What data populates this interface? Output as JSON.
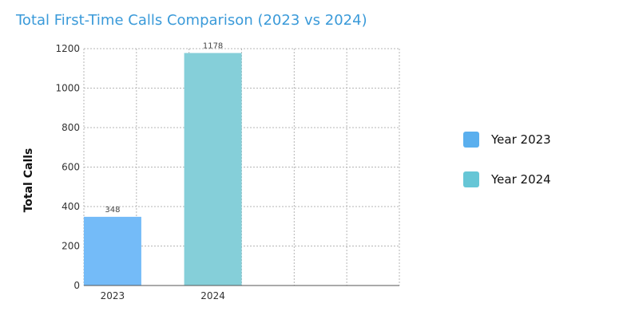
{
  "chart_data": {
    "type": "bar",
    "title": "Total First-Time Calls Comparison (2023 vs 2024)",
    "xlabel": "",
    "ylabel": "Total Calls",
    "categories": [
      "2023",
      "2024"
    ],
    "values": [
      348,
      1178
    ],
    "data_labels": [
      "348",
      "1178"
    ],
    "colors": [
      "#74bbf8",
      "#85cfd9"
    ],
    "ylim": [
      0,
      1200
    ],
    "yticks": [
      0,
      200,
      400,
      600,
      800,
      1000,
      1200
    ],
    "grid": true,
    "legend_position": "right",
    "legend": [
      {
        "label": "Year 2023",
        "color": "#5aafee"
      },
      {
        "label": "Year 2024",
        "color": "#66c6d6"
      }
    ]
  }
}
